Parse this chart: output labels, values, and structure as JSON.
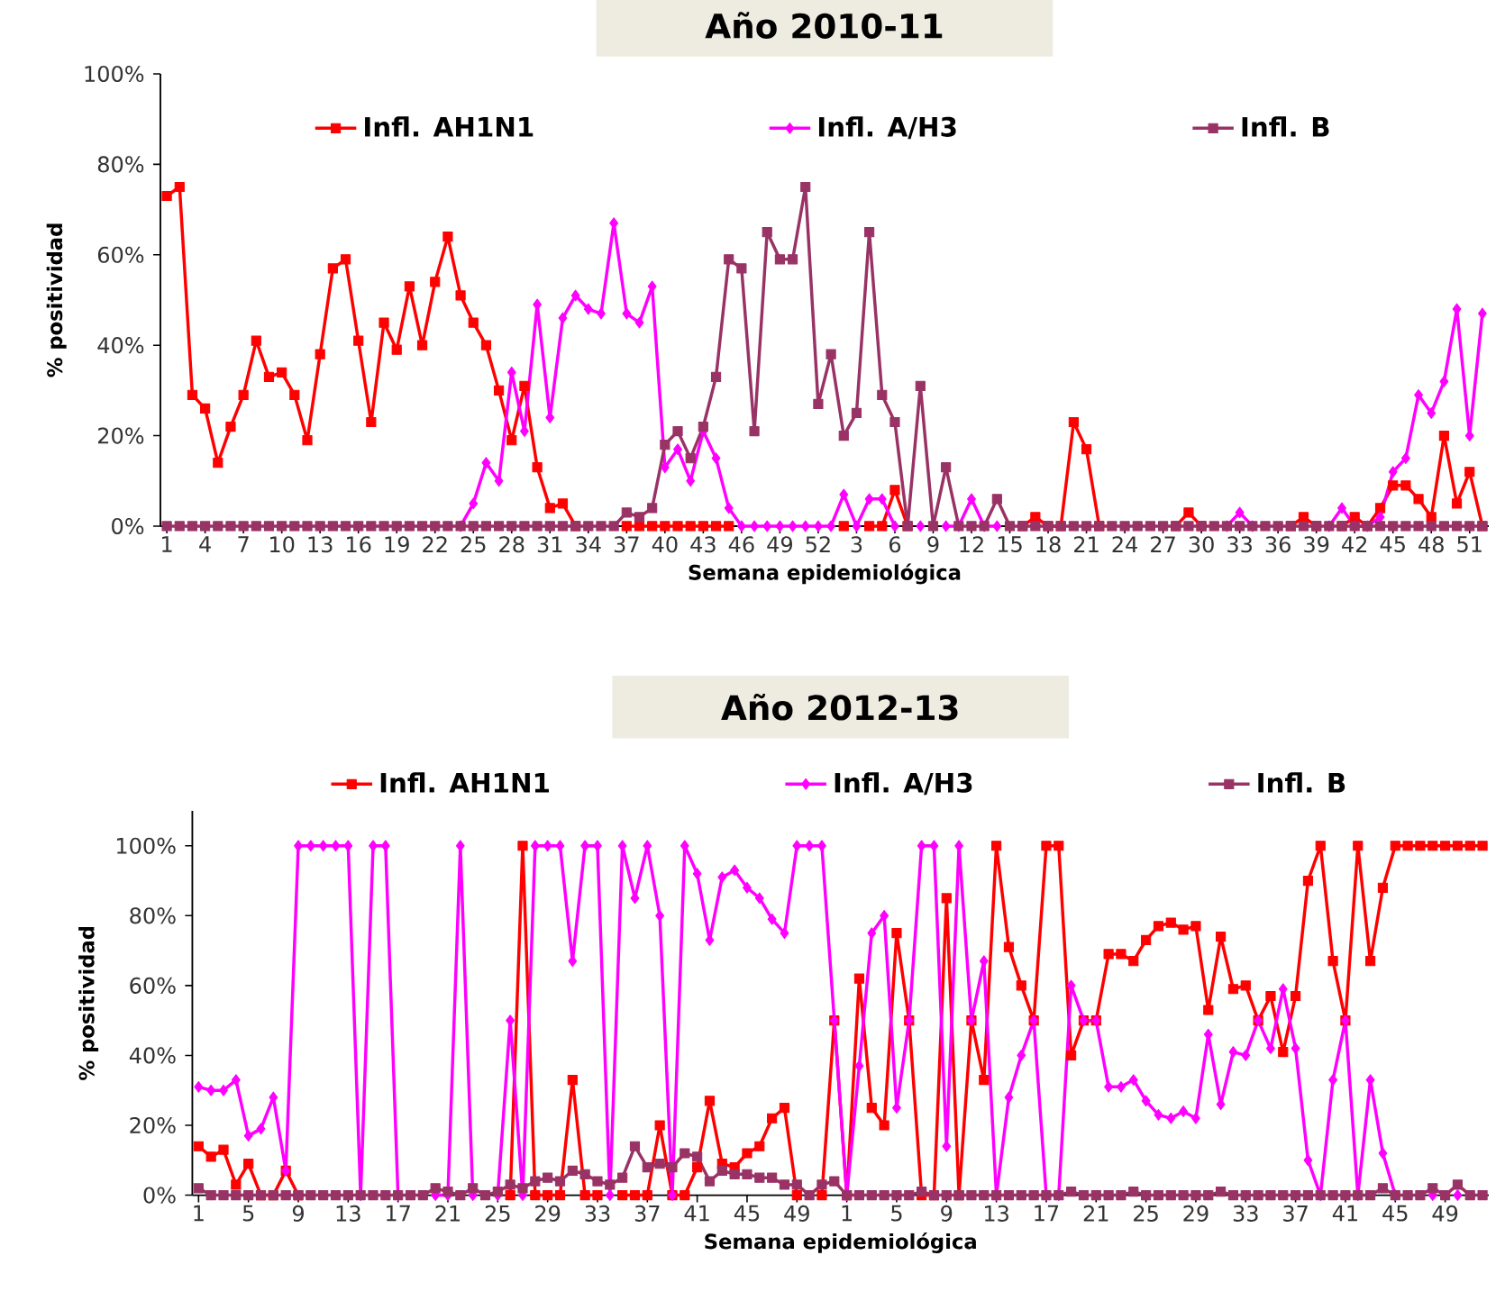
{
  "chart_data": [
    {
      "type": "line",
      "title": "Año 2010-11",
      "xlabel": "Semana epidemiológica",
      "ylabel": "% positividad",
      "legend": "top",
      "categories": [
        "1",
        null,
        null,
        "4",
        null,
        null,
        "7",
        null,
        null,
        "10",
        null,
        null,
        "13",
        null,
        null,
        "16",
        null,
        null,
        "19",
        null,
        null,
        "22",
        null,
        null,
        "25",
        null,
        null,
        "28",
        null,
        null,
        "31",
        null,
        null,
        "34",
        null,
        null,
        "37",
        null,
        null,
        "40",
        null,
        null,
        "43",
        null,
        null,
        "46",
        null,
        null,
        "49",
        null,
        null,
        "52",
        null,
        null,
        "3",
        null,
        null,
        "6",
        null,
        null,
        "9",
        null,
        null,
        "12",
        null,
        null,
        "15",
        null,
        null,
        "18",
        null,
        null,
        "21",
        null,
        null,
        "24",
        null,
        null,
        "27",
        null,
        null,
        "30",
        null,
        null,
        "33",
        null,
        null,
        "36",
        null,
        null,
        "39",
        null,
        null,
        "42",
        null,
        null,
        "45",
        null,
        null,
        "48",
        null,
        null,
        "51",
        null
      ],
      "ylim": [
        0,
        100
      ],
      "yticks": [
        {
          "value": 0,
          "label": "0%"
        },
        {
          "value": 20,
          "label": "20%"
        },
        {
          "value": 40,
          "label": "40%"
        },
        {
          "value": 60,
          "label": "60%"
        },
        {
          "value": 80,
          "label": "80%"
        },
        {
          "value": 100,
          "label": "100%"
        }
      ],
      "series": [
        {
          "name": "Infl. AH1N1",
          "color": "#ff0000",
          "marker": "square",
          "values": [
            73,
            75,
            29,
            26,
            14,
            22,
            29,
            41,
            33,
            34,
            29,
            19,
            38,
            57,
            59,
            41,
            23,
            45,
            39,
            53,
            40,
            54,
            64,
            51,
            45,
            40,
            30,
            19,
            31,
            13,
            4,
            5,
            0,
            null,
            null,
            null,
            0,
            0,
            0,
            0,
            0,
            0,
            0,
            0,
            0,
            null,
            null,
            null,
            null,
            null,
            null,
            null,
            null,
            0,
            null,
            0,
            0,
            8,
            0,
            null,
            null,
            null,
            null,
            null,
            null,
            null,
            null,
            0,
            2,
            0,
            0,
            23,
            17,
            0,
            null,
            null,
            null,
            null,
            null,
            0,
            3,
            0,
            null,
            null,
            null,
            null,
            null,
            null,
            0,
            2,
            0,
            null,
            0,
            2,
            0,
            4,
            9,
            9,
            6,
            2,
            20,
            5,
            12,
            0
          ]
        },
        {
          "name": "Infl. A/H3",
          "color": "#ff00ff",
          "marker": "diamond",
          "values": [
            null,
            null,
            null,
            null,
            null,
            null,
            null,
            null,
            null,
            null,
            null,
            null,
            null,
            null,
            null,
            null,
            null,
            null,
            null,
            null,
            null,
            null,
            null,
            0,
            5,
            14,
            10,
            34,
            21,
            49,
            24,
            46,
            51,
            48,
            47,
            67,
            47,
            45,
            53,
            13,
            17,
            10,
            21,
            15,
            4,
            0,
            0,
            0,
            0,
            0,
            0,
            0,
            0,
            7,
            0,
            6,
            6,
            0,
            null,
            0,
            null,
            0,
            0,
            6,
            0,
            0,
            null,
            null,
            null,
            null,
            null,
            null,
            null,
            null,
            null,
            null,
            null,
            null,
            null,
            null,
            null,
            null,
            null,
            0,
            3,
            0,
            null,
            null,
            null,
            null,
            null,
            0,
            4,
            0,
            0,
            2,
            12,
            15,
            29,
            25,
            32,
            48,
            20,
            47
          ]
        },
        {
          "name": "Infl. B",
          "color": "#993366",
          "marker": "square",
          "values": [
            0,
            0,
            0,
            0,
            0,
            0,
            0,
            0,
            0,
            0,
            0,
            0,
            0,
            0,
            0,
            0,
            0,
            0,
            0,
            0,
            0,
            0,
            0,
            0,
            0,
            0,
            0,
            0,
            0,
            0,
            0,
            0,
            0,
            0,
            0,
            0,
            3,
            2,
            4,
            18,
            21,
            15,
            22,
            33,
            59,
            57,
            21,
            65,
            59,
            59,
            75,
            27,
            38,
            20,
            25,
            65,
            29,
            23,
            0,
            31,
            0,
            13,
            0,
            0,
            0,
            6,
            0,
            0,
            0,
            0,
            0,
            0,
            0,
            0,
            0,
            0,
            0,
            0,
            0,
            0,
            0,
            0,
            0,
            0,
            0,
            0,
            0,
            0,
            0,
            0,
            0,
            0,
            0,
            0,
            0,
            0,
            0,
            0,
            0,
            0,
            0,
            0,
            0,
            0
          ]
        }
      ]
    },
    {
      "type": "line",
      "title": "Año 2012-13",
      "xlabel": "Semana epidemiológica",
      "ylabel": "% positividad",
      "legend": "top",
      "categories": [
        "1",
        null,
        null,
        null,
        "5",
        null,
        null,
        null,
        "9",
        null,
        null,
        null,
        "13",
        null,
        null,
        null,
        "17",
        null,
        null,
        null,
        "21",
        null,
        null,
        null,
        "25",
        null,
        null,
        null,
        "29",
        null,
        null,
        null,
        "33",
        null,
        null,
        null,
        "37",
        null,
        null,
        null,
        "41",
        null,
        null,
        null,
        "45",
        null,
        null,
        null,
        "49",
        null,
        null,
        null,
        "1",
        null,
        null,
        null,
        "5",
        null,
        null,
        null,
        "9",
        null,
        null,
        null,
        "13",
        null,
        null,
        null,
        "17",
        null,
        null,
        null,
        "21",
        null,
        null,
        null,
        "25",
        null,
        null,
        null,
        "29",
        null,
        null,
        null,
        "33",
        null,
        null,
        null,
        "37",
        null,
        null,
        null,
        "41",
        null,
        null,
        null,
        "45",
        null,
        null,
        null,
        "49",
        null,
        null,
        null
      ],
      "ylim": [
        0,
        110
      ],
      "yticks": [
        {
          "value": 0,
          "label": "0%"
        },
        {
          "value": 20,
          "label": "20%"
        },
        {
          "value": 40,
          "label": "40%"
        },
        {
          "value": 60,
          "label": "60%"
        },
        {
          "value": 80,
          "label": "80%"
        },
        {
          "value": 100,
          "label": "100%"
        }
      ],
      "series": [
        {
          "name": "Infl. AH1N1",
          "color": "#ff0000",
          "marker": "square",
          "values": [
            14,
            11,
            13,
            3,
            9,
            0,
            0,
            7,
            0,
            null,
            null,
            null,
            null,
            null,
            null,
            null,
            null,
            null,
            null,
            null,
            null,
            null,
            null,
            null,
            null,
            0,
            100,
            0,
            0,
            0,
            33,
            0,
            0,
            null,
            0,
            0,
            0,
            20,
            0,
            0,
            8,
            27,
            9,
            8,
            12,
            14,
            22,
            25,
            0,
            null,
            0,
            50,
            0,
            62,
            25,
            20,
            75,
            50,
            0,
            0,
            85,
            0,
            50,
            33,
            100,
            71,
            60,
            50,
            100,
            100,
            40,
            50,
            50,
            69,
            69,
            67,
            73,
            77,
            78,
            76,
            77,
            53,
            74,
            59,
            60,
            50,
            57,
            41,
            57,
            90,
            100,
            67,
            50,
            100,
            67,
            88,
            100,
            100,
            100,
            100,
            100,
            100,
            100,
            100
          ]
        },
        {
          "name": "Infl. A/H3",
          "color": "#ff00ff",
          "marker": "diamond",
          "values": [
            31,
            30,
            30,
            33,
            17,
            19,
            28,
            7,
            100,
            100,
            100,
            100,
            100,
            0,
            100,
            100,
            0,
            null,
            null,
            0,
            0,
            100,
            0,
            null,
            0,
            50,
            0,
            100,
            100,
            100,
            67,
            100,
            100,
            0,
            100,
            85,
            100,
            80,
            0,
            100,
            92,
            73,
            91,
            93,
            88,
            85,
            79,
            75,
            100,
            100,
            100,
            50,
            0,
            37,
            75,
            80,
            25,
            50,
            100,
            100,
            14,
            100,
            50,
            67,
            0,
            28,
            40,
            50,
            0,
            0,
            60,
            50,
            50,
            31,
            31,
            33,
            27,
            23,
            22,
            24,
            22,
            46,
            26,
            41,
            40,
            50,
            42,
            59,
            42,
            10,
            0,
            33,
            50,
            0,
            33,
            12,
            0,
            null,
            null,
            0,
            null,
            0,
            null,
            null
          ]
        },
        {
          "name": "Infl. B",
          "color": "#993366",
          "marker": "square",
          "values": [
            2,
            0,
            0,
            0,
            0,
            0,
            0,
            0,
            0,
            0,
            0,
            0,
            0,
            0,
            0,
            0,
            0,
            0,
            0,
            2,
            1,
            0,
            2,
            0,
            1,
            3,
            2,
            4,
            5,
            4,
            7,
            6,
            4,
            3,
            5,
            14,
            8,
            9,
            8,
            12,
            11,
            4,
            7,
            6,
            6,
            5,
            5,
            3,
            3,
            0,
            3,
            4,
            0,
            0,
            0,
            0,
            0,
            0,
            1,
            0,
            0,
            0,
            0,
            0,
            0,
            0,
            0,
            0,
            0,
            0,
            1,
            0,
            0,
            0,
            0,
            1,
            0,
            0,
            0,
            0,
            0,
            0,
            1,
            0,
            0,
            0,
            0,
            0,
            0,
            0,
            0,
            0,
            0,
            0,
            0,
            2,
            0,
            0,
            0,
            2,
            0,
            3,
            0,
            0
          ]
        }
      ]
    }
  ]
}
